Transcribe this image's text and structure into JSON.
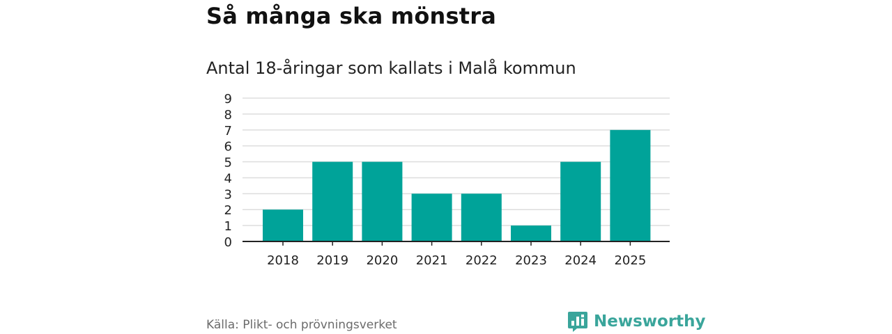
{
  "header": {
    "title": "Så många ska mönstra",
    "subtitle": "Antal 18-åringar som kallats i Malå kommun"
  },
  "footer": {
    "source": "Källa: Plikt- och prövningsverket",
    "brand": "Newsworthy",
    "brand_icon": "bar-chart-badge-icon"
  },
  "colors": {
    "bar": "#00a399",
    "grid": "#dddddd",
    "axis": "#222222",
    "brand": "#3aa59b"
  },
  "chart_data": {
    "type": "bar",
    "categories": [
      "2018",
      "2019",
      "2020",
      "2021",
      "2022",
      "2023",
      "2024",
      "2025"
    ],
    "values": [
      2,
      5,
      5,
      3,
      3,
      1,
      5,
      7
    ],
    "title": "Så många ska mönstra",
    "subtitle": "Antal 18-åringar som kallats i Malå kommun",
    "xlabel": "",
    "ylabel": "",
    "ylim": [
      0,
      9
    ],
    "yticks": [
      0,
      1,
      2,
      3,
      4,
      5,
      6,
      7,
      8,
      9
    ],
    "grid": true,
    "legend": "none"
  }
}
